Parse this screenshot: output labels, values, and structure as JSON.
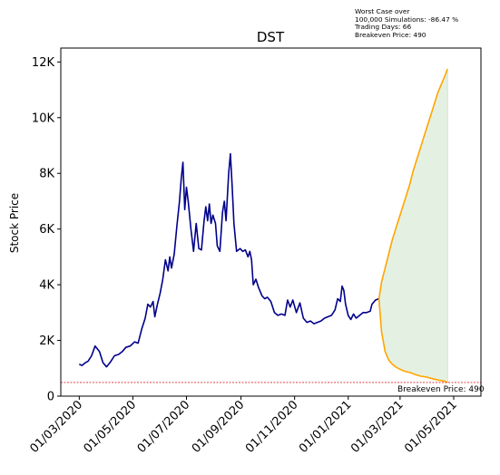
{
  "chart_data": {
    "type": "line",
    "title": "DST",
    "xlabel": "",
    "ylabel": "Stock Price",
    "x_tick_labels": [
      "01/03/2020",
      "01/05/2020",
      "01/07/2020",
      "01/09/2020",
      "01/11/2020",
      "01/01/2021",
      "01/03/2021",
      "01/05/2021"
    ],
    "y_tick_labels": [
      "0",
      "2K",
      "4K",
      "6K",
      "8K",
      "10K",
      "12K"
    ],
    "ylim": [
      0,
      12500
    ],
    "xlim": [
      "2020-02-09",
      "2021-06-01"
    ],
    "grid": false,
    "annotation": {
      "lines": [
        "Worst Case over",
        "100,000 Simulations: -86.47 %",
        "Trading Days: 66",
        "Breakeven Price: 490"
      ]
    },
    "breakeven": {
      "value": 490,
      "label": "Breakeven Price: 490"
    },
    "series": [
      {
        "role": "historical",
        "color": "#00008b",
        "points": [
          [
            "2020-03-01",
            1150
          ],
          [
            "2020-03-04",
            1100
          ],
          [
            "2020-03-08",
            1200
          ],
          [
            "2020-03-11",
            1250
          ],
          [
            "2020-03-15",
            1450
          ],
          [
            "2020-03-19",
            1800
          ],
          [
            "2020-03-24",
            1600
          ],
          [
            "2020-03-28",
            1200
          ],
          [
            "2020-04-01",
            1050
          ],
          [
            "2020-04-06",
            1250
          ],
          [
            "2020-04-10",
            1450
          ],
          [
            "2020-04-15",
            1500
          ],
          [
            "2020-04-19",
            1600
          ],
          [
            "2020-04-23",
            1750
          ],
          [
            "2020-04-28",
            1800
          ],
          [
            "2020-05-03",
            1950
          ],
          [
            "2020-05-07",
            1900
          ],
          [
            "2020-05-11",
            2400
          ],
          [
            "2020-05-15",
            2800
          ],
          [
            "2020-05-18",
            3300
          ],
          [
            "2020-05-21",
            3200
          ],
          [
            "2020-05-24",
            3400
          ],
          [
            "2020-05-26",
            2850
          ],
          [
            "2020-05-29",
            3300
          ],
          [
            "2020-06-01",
            3700
          ],
          [
            "2020-06-04",
            4200
          ],
          [
            "2020-06-07",
            4900
          ],
          [
            "2020-06-10",
            4500
          ],
          [
            "2020-06-12",
            5000
          ],
          [
            "2020-06-14",
            4600
          ],
          [
            "2020-06-17",
            5100
          ],
          [
            "2020-06-20",
            6100
          ],
          [
            "2020-06-23",
            7000
          ],
          [
            "2020-06-25",
            7800
          ],
          [
            "2020-06-27",
            8400
          ],
          [
            "2020-06-29",
            6700
          ],
          [
            "2020-07-01",
            7500
          ],
          [
            "2020-07-03",
            7000
          ],
          [
            "2020-07-06",
            6000
          ],
          [
            "2020-07-09",
            5200
          ],
          [
            "2020-07-12",
            6200
          ],
          [
            "2020-07-15",
            5300
          ],
          [
            "2020-07-18",
            5250
          ],
          [
            "2020-07-21",
            6300
          ],
          [
            "2020-07-23",
            6800
          ],
          [
            "2020-07-25",
            6300
          ],
          [
            "2020-07-27",
            6900
          ],
          [
            "2020-07-29",
            6200
          ],
          [
            "2020-07-31",
            6500
          ],
          [
            "2020-08-03",
            6200
          ],
          [
            "2020-08-05",
            5400
          ],
          [
            "2020-08-08",
            5200
          ],
          [
            "2020-08-11",
            6600
          ],
          [
            "2020-08-13",
            7000
          ],
          [
            "2020-08-15",
            6300
          ],
          [
            "2020-08-18",
            8000
          ],
          [
            "2020-08-20",
            8700
          ],
          [
            "2020-08-22",
            7500
          ],
          [
            "2020-08-24",
            6200
          ],
          [
            "2020-08-27",
            5200
          ],
          [
            "2020-08-31",
            5300
          ],
          [
            "2020-09-03",
            5200
          ],
          [
            "2020-09-06",
            5250
          ],
          [
            "2020-09-09",
            5000
          ],
          [
            "2020-09-11",
            5200
          ],
          [
            "2020-09-13",
            4900
          ],
          [
            "2020-09-15",
            4000
          ],
          [
            "2020-09-18",
            4200
          ],
          [
            "2020-09-21",
            3900
          ],
          [
            "2020-09-25",
            3600
          ],
          [
            "2020-09-28",
            3500
          ],
          [
            "2020-10-01",
            3550
          ],
          [
            "2020-10-05",
            3400
          ],
          [
            "2020-10-09",
            3000
          ],
          [
            "2020-10-13",
            2900
          ],
          [
            "2020-10-17",
            2950
          ],
          [
            "2020-10-21",
            2900
          ],
          [
            "2020-10-24",
            3450
          ],
          [
            "2020-10-27",
            3200
          ],
          [
            "2020-10-30",
            3450
          ],
          [
            "2020-11-03",
            3000
          ],
          [
            "2020-11-07",
            3350
          ],
          [
            "2020-11-11",
            2800
          ],
          [
            "2020-11-15",
            2650
          ],
          [
            "2020-11-19",
            2700
          ],
          [
            "2020-11-23",
            2600
          ],
          [
            "2020-11-27",
            2650
          ],
          [
            "2020-12-01",
            2700
          ],
          [
            "2020-12-05",
            2800
          ],
          [
            "2020-12-09",
            2850
          ],
          [
            "2020-12-13",
            2900
          ],
          [
            "2020-12-17",
            3100
          ],
          [
            "2020-12-20",
            3500
          ],
          [
            "2020-12-23",
            3400
          ],
          [
            "2020-12-25",
            3950
          ],
          [
            "2020-12-27",
            3800
          ],
          [
            "2020-12-29",
            3300
          ],
          [
            "2021-01-01",
            2900
          ],
          [
            "2021-01-04",
            2750
          ],
          [
            "2021-01-07",
            2950
          ],
          [
            "2021-01-10",
            2800
          ],
          [
            "2021-01-14",
            2900
          ],
          [
            "2021-01-18",
            3000
          ],
          [
            "2021-01-22",
            3000
          ],
          [
            "2021-01-26",
            3050
          ],
          [
            "2021-01-28",
            3300
          ],
          [
            "2021-02-01",
            3450
          ],
          [
            "2021-02-05",
            3500
          ]
        ]
      },
      {
        "role": "best_case",
        "color": "#ffa500",
        "points": [
          [
            "2021-02-05",
            3500
          ],
          [
            "2021-02-08",
            4100
          ],
          [
            "2021-02-12",
            4600
          ],
          [
            "2021-02-16",
            5100
          ],
          [
            "2021-02-20",
            5600
          ],
          [
            "2021-02-24",
            6000
          ],
          [
            "2021-02-28",
            6400
          ],
          [
            "2021-03-04",
            6800
          ],
          [
            "2021-03-08",
            7200
          ],
          [
            "2021-03-12",
            7600
          ],
          [
            "2021-03-16",
            8100
          ],
          [
            "2021-03-20",
            8500
          ],
          [
            "2021-03-24",
            8900
          ],
          [
            "2021-03-28",
            9300
          ],
          [
            "2021-04-01",
            9700
          ],
          [
            "2021-04-05",
            10100
          ],
          [
            "2021-04-09",
            10500
          ],
          [
            "2021-04-13",
            10900
          ],
          [
            "2021-04-17",
            11200
          ],
          [
            "2021-04-21",
            11500
          ],
          [
            "2021-04-24",
            11750
          ]
        ]
      },
      {
        "role": "worst_case",
        "color": "#ffa500",
        "points": [
          [
            "2021-02-05",
            3500
          ],
          [
            "2021-02-08",
            2300
          ],
          [
            "2021-02-12",
            1600
          ],
          [
            "2021-02-16",
            1300
          ],
          [
            "2021-02-20",
            1150
          ],
          [
            "2021-02-24",
            1050
          ],
          [
            "2021-02-28",
            980
          ],
          [
            "2021-03-04",
            920
          ],
          [
            "2021-03-08",
            880
          ],
          [
            "2021-03-12",
            850
          ],
          [
            "2021-03-16",
            800
          ],
          [
            "2021-03-20",
            760
          ],
          [
            "2021-03-24",
            720
          ],
          [
            "2021-03-28",
            700
          ],
          [
            "2021-04-01",
            680
          ],
          [
            "2021-04-05",
            640
          ],
          [
            "2021-04-09",
            610
          ],
          [
            "2021-04-13",
            580
          ],
          [
            "2021-04-17",
            560
          ],
          [
            "2021-04-21",
            530
          ],
          [
            "2021-04-24",
            490
          ]
        ]
      }
    ],
    "fill_color": "#e4f1e2",
    "breakeven_color": "#d62728"
  }
}
